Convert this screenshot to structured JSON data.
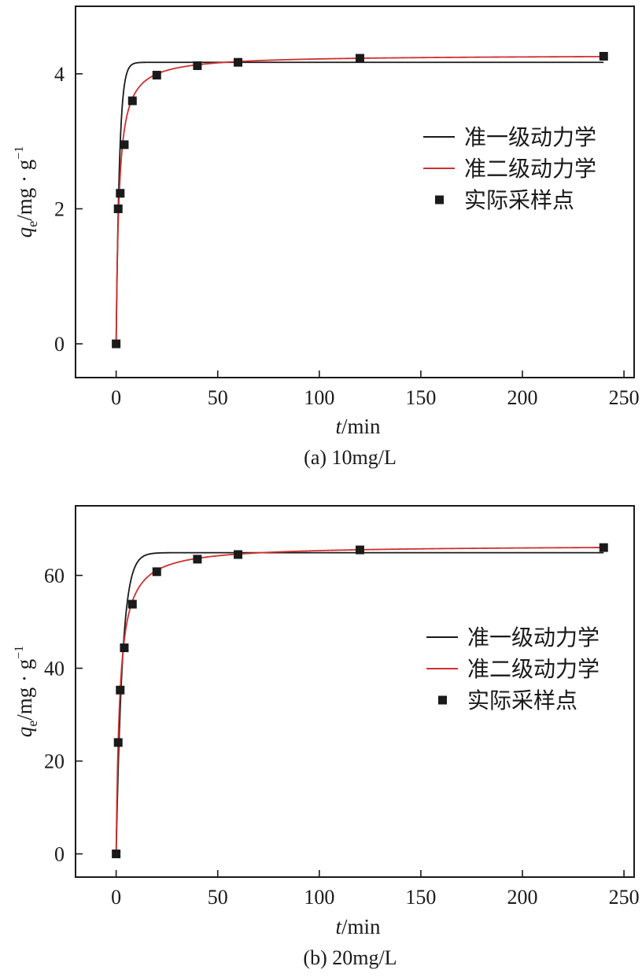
{
  "chart_data": [
    {
      "type": "scatter",
      "caption": "(a) 10mg/L",
      "xlabel": {
        "italic": "t",
        "rest": "/min"
      },
      "ylabel": {
        "italic": "q",
        "sub": "e",
        "rest": "/mg · g",
        "sup": "−1"
      },
      "xlim": [
        -20,
        255
      ],
      "ylim": [
        -0.5,
        5.0
      ],
      "xticks": [
        0,
        50,
        100,
        150,
        200,
        250
      ],
      "yticks": [
        0,
        2,
        4
      ],
      "legend_position": "right",
      "series": [
        {
          "name": "准一级动力学",
          "kind": "line",
          "color": "#1a1a1a",
          "model": "pfo",
          "qe": 4.17,
          "k": 0.62
        },
        {
          "name": "准二级动力学",
          "kind": "line",
          "color": "#d03030",
          "model": "pso",
          "qe": 4.28,
          "k": 0.165
        },
        {
          "name": "实际采样点",
          "kind": "points",
          "color": "#1a1a1a",
          "x": [
            0,
            1,
            2,
            4,
            8,
            20,
            40,
            60,
            120,
            240
          ],
          "y": [
            0,
            2.0,
            2.23,
            2.95,
            3.6,
            3.98,
            4.12,
            4.17,
            4.23,
            4.26
          ]
        }
      ]
    },
    {
      "type": "scatter",
      "caption": "(b) 20mg/L",
      "xlabel": {
        "italic": "t",
        "rest": "/min"
      },
      "ylabel": {
        "italic": "q",
        "sub": "e",
        "rest": "/mg · g",
        "sup": "−1"
      },
      "xlim": [
        -20,
        255
      ],
      "ylim": [
        -5,
        75
      ],
      "xticks": [
        0,
        50,
        100,
        150,
        200,
        250
      ],
      "yticks": [
        0,
        20,
        40,
        60
      ],
      "legend_position": "right",
      "series": [
        {
          "name": "准一级动力学",
          "kind": "line",
          "color": "#1a1a1a",
          "model": "pfo",
          "qe": 64.9,
          "k": 0.33
        },
        {
          "name": "准二级动力学",
          "kind": "line",
          "color": "#d03030",
          "model": "pso",
          "qe": 66.5,
          "k": 0.0085
        },
        {
          "name": "实际采样点",
          "kind": "points",
          "color": "#1a1a1a",
          "x": [
            0,
            1,
            2,
            4,
            8,
            20,
            40,
            60,
            120,
            240
          ],
          "y": [
            0,
            24,
            35.3,
            44.4,
            53.8,
            60.8,
            63.5,
            64.5,
            65.5,
            66.0
          ]
        }
      ]
    }
  ]
}
